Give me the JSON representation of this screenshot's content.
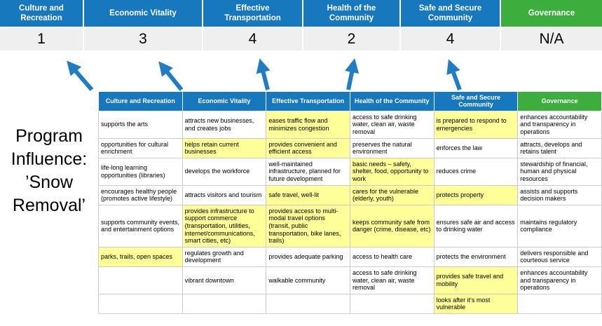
{
  "title": "Program Influence: ’Snow Removal’",
  "colors": {
    "header_blue": "#1878BE",
    "header_green": "#3DAE3D",
    "score_bg": "#EFEFEF",
    "highlight": "#FFFF99",
    "arrow": "#1F7CC5",
    "table_border": "#CCCCCC"
  },
  "pillars": [
    {
      "label": "Culture and Recreation",
      "score": "1",
      "type": "blue"
    },
    {
      "label": "Economic Vitality",
      "score": "3",
      "type": "blue"
    },
    {
      "label": "Effective Transportation",
      "score": "4",
      "type": "blue"
    },
    {
      "label": "Health of the Community",
      "score": "2",
      "type": "blue"
    },
    {
      "label": "Safe and Secure Community",
      "score": "4",
      "type": "blue"
    },
    {
      "label": "Governance",
      "score": "N/A",
      "type": "green"
    }
  ],
  "matrix_rows": [
    [
      {
        "text": "supports the arts",
        "hl": false
      },
      {
        "text": "attracts new businesses, and creates jobs",
        "hl": false
      },
      {
        "text": "eases traffic flow and minimizes congestion",
        "hl": true
      },
      {
        "text": "access to safe drinking water, clean air, waste removal",
        "hl": false
      },
      {
        "text": "is prepared to respond to emergencies",
        "hl": true
      },
      {
        "text": "enhances accountability and transparency in operations",
        "hl": false
      }
    ],
    [
      {
        "text": "opportunities for cultural enrichment",
        "hl": false
      },
      {
        "text": "helps retain current businesses",
        "hl": true
      },
      {
        "text": "provides convenient and efficient access",
        "hl": true
      },
      {
        "text": "preserves the natural environment",
        "hl": false
      },
      {
        "text": "enforces the law",
        "hl": false
      },
      {
        "text": "attracts, develops and retains talent",
        "hl": false
      }
    ],
    [
      {
        "text": "life-long learning opportunities (libraries)",
        "hl": false
      },
      {
        "text": "develops the workforce",
        "hl": false
      },
      {
        "text": "well-maintained infrastructure, planned for future development",
        "hl": false
      },
      {
        "text": "basic needs – safety, shelter, food, opportunity to work",
        "hl": true
      },
      {
        "text": "reduces crime",
        "hl": false
      },
      {
        "text": "stewardship of financial, human and physical resources",
        "hl": false
      }
    ],
    [
      {
        "text": "encourages healthy people (promotes active lifestyle)",
        "hl": false
      },
      {
        "text": "attracts visitors and tourism",
        "hl": false
      },
      {
        "text": "safe travel, well-lit",
        "hl": true
      },
      {
        "text": "cares for the vulnerable (elderly, youth)",
        "hl": true
      },
      {
        "text": "protects property",
        "hl": true
      },
      {
        "text": "assists and supports decision makers",
        "hl": false
      }
    ],
    [
      {
        "text": "supports community events, and entertainment options",
        "hl": false
      },
      {
        "text": "provides infrastructure to support commerce (transportation, utilities, internet/communications, smart cities, etc)",
        "hl": true
      },
      {
        "text": "provides access to multi-modal travel options (transit, public transportation, bike lanes, trails)",
        "hl": true
      },
      {
        "text": "keeps community safe from danger (crime, disease, etc)",
        "hl": true
      },
      {
        "text": "ensures safe air and access to drinking water",
        "hl": false
      },
      {
        "text": "maintains regulatory compliance",
        "hl": false
      }
    ],
    [
      {
        "text": "parks, trails, open spaces",
        "hl": true
      },
      {
        "text": "regulates growth and development",
        "hl": false
      },
      {
        "text": "provides adequate parking",
        "hl": false
      },
      {
        "text": "access to health care",
        "hl": false
      },
      {
        "text": "protects the environment",
        "hl": false
      },
      {
        "text": "delivers responsible and courteous service",
        "hl": false
      }
    ],
    [
      {
        "text": "",
        "hl": false
      },
      {
        "text": "vibrant downtown",
        "hl": false
      },
      {
        "text": "walkable community",
        "hl": false
      },
      {
        "text": "access to safe drinking water, clean air, waste removal",
        "hl": false
      },
      {
        "text": "provides safe travel and mobility",
        "hl": true
      },
      {
        "text": "enhances accountability and transparency in operations",
        "hl": false
      }
    ],
    [
      {
        "text": "",
        "hl": false
      },
      {
        "text": "",
        "hl": false
      },
      {
        "text": "",
        "hl": false
      },
      {
        "text": "",
        "hl": false
      },
      {
        "text": "looks after it's most vulnerable",
        "hl": true
      },
      {
        "text": "",
        "hl": false
      }
    ]
  ]
}
